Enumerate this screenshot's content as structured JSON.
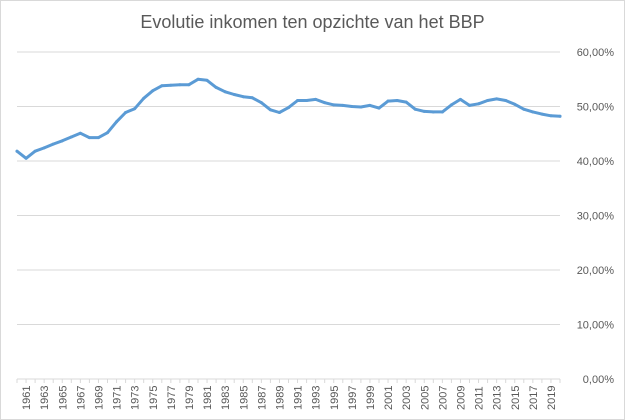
{
  "chart_data": {
    "type": "line",
    "title": "Evolutie inkomen ten opzichte van het BBP",
    "xlabel": "",
    "ylabel": "",
    "ylim": [
      0,
      60
    ],
    "y_axis_side": "right",
    "grid": true,
    "legend": "none",
    "line_color": "#5b9bd5",
    "gridline_color": "#d9d9d9",
    "y_ticks": [
      "0,00%",
      "10,00%",
      "20,00%",
      "30,00%",
      "40,00%",
      "50,00%",
      "60,00%"
    ],
    "x_tick_labels": [
      "1961",
      "1963",
      "1965",
      "1967",
      "1969",
      "1971",
      "1973",
      "1975",
      "1977",
      "1979",
      "1981",
      "1983",
      "1985",
      "1987",
      "1989",
      "1991",
      "1993",
      "1995",
      "1997",
      "1999",
      "2001",
      "2003",
      "2005",
      "2007",
      "2009",
      "2011",
      "2013",
      "2015",
      "2017",
      "2019"
    ],
    "x": [
      1960,
      1961,
      1962,
      1963,
      1964,
      1965,
      1966,
      1967,
      1968,
      1969,
      1970,
      1971,
      1972,
      1973,
      1974,
      1975,
      1976,
      1977,
      1978,
      1979,
      1980,
      1981,
      1982,
      1983,
      1984,
      1985,
      1986,
      1987,
      1988,
      1989,
      1990,
      1991,
      1992,
      1993,
      1994,
      1995,
      1996,
      1997,
      1998,
      1999,
      2000,
      2001,
      2002,
      2003,
      2004,
      2005,
      2006,
      2007,
      2008,
      2009,
      2010,
      2011,
      2012,
      2013,
      2014,
      2015,
      2016,
      2017,
      2018,
      2019,
      2020
    ],
    "series": [
      {
        "values": [
          41.8,
          40.5,
          41.8,
          42.4,
          43.1,
          43.7,
          44.4,
          45.1,
          44.3,
          44.3,
          45.2,
          47.2,
          48.9,
          49.6,
          51.5,
          52.9,
          53.8,
          53.9,
          54.0,
          54.0,
          55.0,
          54.8,
          53.5,
          52.7,
          52.2,
          51.8,
          51.6,
          50.7,
          49.4,
          48.9,
          49.8,
          51.1,
          51.1,
          51.3,
          50.7,
          50.3,
          50.2,
          50.0,
          49.9,
          50.2,
          49.7,
          51.0,
          51.1,
          50.8,
          49.5,
          49.1,
          49.0,
          49.0,
          50.3,
          51.3,
          50.2,
          50.5,
          51.1,
          51.4,
          51.1,
          50.4,
          49.5,
          49.0,
          48.6,
          48.3,
          48.2
        ]
      }
    ]
  }
}
